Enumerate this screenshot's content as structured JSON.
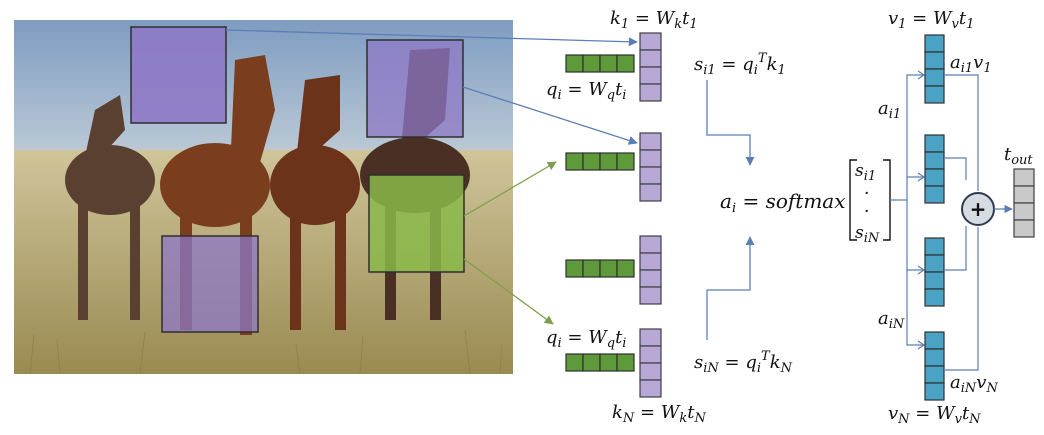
{
  "labels": {
    "k1_lhs": "k",
    "k1_sub": "1",
    "k1_eq": " = W",
    "k1_wsub": "k",
    "k1_t": "t",
    "k1_tsub": "1",
    "kN_lhs": "k",
    "kN_sub": "N",
    "kN_eq": " = W",
    "kN_wsub": "k",
    "kN_t": "t",
    "kN_tsub": "N",
    "qi_top_lhs": "q",
    "qi_top_sub": "i",
    "qi_top_eq": " = W",
    "qi_top_wsub": "q",
    "qi_top_t": "t",
    "qi_top_tsub": "i",
    "qi_bot_lhs": "q",
    "qi_bot_sub": "i",
    "qi_bot_eq": " = W",
    "qi_bot_wsub": "q",
    "qi_bot_t": "t",
    "qi_bot_tsub": "i",
    "si1_lhs": "s",
    "si1_sub": "i1",
    "si1_eq": " = q",
    "si1_qsub": "i",
    "si1_sup": "T",
    "si1_k": "k",
    "si1_ksub": "1",
    "siN_lhs": "s",
    "siN_sub": "iN",
    "siN_eq": " = q",
    "siN_qsub": "i",
    "siN_sup": "T",
    "siN_k": "k",
    "siN_ksub": "N",
    "ai_lhs": "a",
    "ai_sub": "i",
    "ai_rhs": " = softmax",
    "vec_top": "s",
    "vec_top_sub": "i1",
    "vec_dots": "·",
    "vec_bot": "s",
    "vec_bot_sub": "iN",
    "v1_lhs": "v",
    "v1_sub": "1",
    "v1_eq": " = W",
    "v1_wsub": "v",
    "v1_t": "t",
    "v1_tsub": "1",
    "vN_lhs": "v",
    "vN_sub": "N",
    "vN_eq": " = W",
    "vN_wsub": "v",
    "vN_t": "t",
    "vN_tsub": "N",
    "ai1_lhs": "a",
    "ai1_sub": "i1",
    "aiN_lhs": "a",
    "aiN_sub": "iN",
    "ai1v1_a": "a",
    "ai1v1_asub": "i1",
    "ai1v1_v": "v",
    "ai1v1_vsub": "1",
    "aiNvN_a": "a",
    "aiNvN_asub": "iN",
    "aiNvN_v": "v",
    "aiNvN_vsub": "N",
    "tout": "t",
    "tout_sub": "out",
    "plus": "+"
  },
  "colors": {
    "key_purple": "#b7a8d6",
    "query_green": "#5f9a3a",
    "value_blue": "#4aa3c4",
    "output_gray": "#c9c9c9",
    "patch_purple": "#8e78c6",
    "patch_green": "#8ab84a",
    "arrow_blue": "#5b7fb5",
    "arrow_green": "#7f9f4f"
  }
}
